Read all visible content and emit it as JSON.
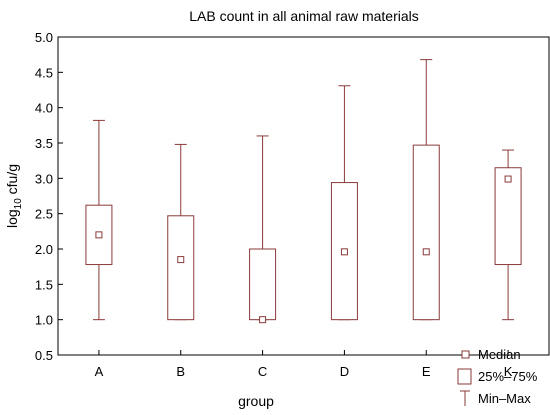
{
  "chart_data": {
    "type": "boxplot",
    "title": "LAB count in all animal raw materials",
    "xlabel": "group",
    "ylabel_main": "log",
    "ylabel_sub": "10",
    "ylabel_rest": " cfu/g",
    "ylim": [
      0.5,
      5.0
    ],
    "yticks": [
      "0.5",
      "1.0",
      "1.5",
      "2.0",
      "2.5",
      "3.0",
      "3.5",
      "4.0",
      "4.5",
      "5.0"
    ],
    "ytick_values": [
      0.5,
      1.0,
      1.5,
      2.0,
      2.5,
      3.0,
      3.5,
      4.0,
      4.5,
      5.0
    ],
    "grid": false,
    "legend_position": "bottom-right",
    "legend": {
      "median": "Median",
      "box": "25%–75%",
      "whisker": "Min–Max"
    },
    "color": "#8B3A3A",
    "categories": [
      "A",
      "B",
      "C",
      "D",
      "E",
      "K"
    ],
    "boxes": [
      {
        "min": 1.0,
        "q1": 1.78,
        "median": 2.2,
        "q3": 2.62,
        "max": 3.82
      },
      {
        "min": 1.0,
        "q1": 1.0,
        "median": 1.85,
        "q3": 2.47,
        "max": 3.48
      },
      {
        "min": 1.0,
        "q1": 1.0,
        "median": 1.0,
        "q3": 2.0,
        "max": 3.6
      },
      {
        "min": 1.0,
        "q1": 1.0,
        "median": 1.96,
        "q3": 2.94,
        "max": 4.31
      },
      {
        "min": 1.0,
        "q1": 1.0,
        "median": 1.96,
        "q3": 3.47,
        "max": 4.68
      },
      {
        "min": 1.0,
        "q1": 1.78,
        "median": 2.99,
        "q3": 3.15,
        "max": 3.4
      }
    ]
  }
}
